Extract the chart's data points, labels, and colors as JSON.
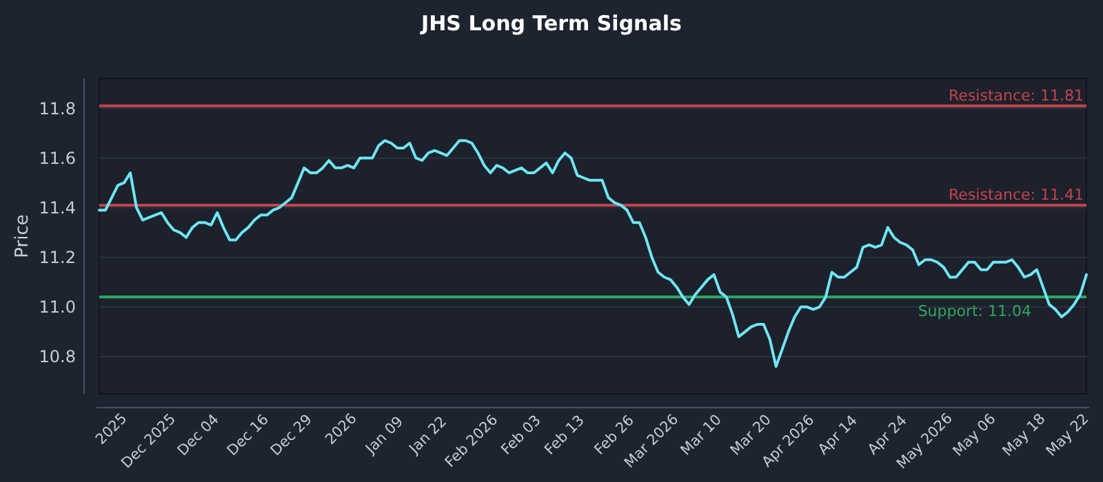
{
  "chart_data": {
    "type": "line",
    "title": "JHS Long Term Signals",
    "ylabel": "Price",
    "categories": [
      null,
      null,
      "2025",
      null,
      null,
      null,
      null,
      null,
      "Dec 2025",
      null,
      null,
      null,
      null,
      null,
      null,
      null,
      "Dec 04",
      null,
      null,
      null,
      null,
      null,
      null,
      null,
      "Dec 16",
      null,
      null,
      null,
      null,
      null,
      null,
      "Dec 29",
      null,
      null,
      null,
      null,
      null,
      null,
      null,
      "2026",
      null,
      null,
      null,
      null,
      null,
      null,
      "Jan 09",
      null,
      null,
      null,
      null,
      null,
      null,
      "Jan 22",
      null,
      null,
      null,
      null,
      null,
      null,
      "Feb 2026",
      null,
      null,
      null,
      null,
      null,
      null,
      null,
      "Feb 03",
      null,
      null,
      null,
      null,
      null,
      null,
      "Feb 13",
      null,
      null,
      null,
      null,
      null,
      null,
      null,
      "Feb 26",
      null,
      null,
      null,
      null,
      null,
      "Mar 2026",
      null,
      null,
      null,
      null,
      null,
      null,
      null,
      "Mar 10",
      null,
      null,
      null,
      null,
      null,
      null,
      null,
      "Mar 20",
      null,
      null,
      null,
      null,
      null,
      "Apr 2026",
      null,
      null,
      null,
      null,
      null,
      null,
      null,
      "Apr 14",
      null,
      null,
      null,
      null,
      null,
      null,
      null,
      "Apr 24",
      null,
      null,
      null,
      null,
      null,
      "May 2026",
      null,
      null,
      null,
      null,
      null,
      null,
      null,
      "May 06",
      null,
      null,
      null,
      null,
      null,
      null,
      null,
      "May 18",
      null,
      null,
      null,
      null,
      null,
      null,
      "May 22",
      null,
      null,
      null
    ],
    "series": [
      {
        "color": "#6ee6f2",
        "values": [
          11.39,
          11.39,
          11.44,
          11.49,
          11.5,
          11.54,
          11.4,
          11.35,
          11.36,
          11.37,
          11.38,
          11.34,
          11.31,
          11.3,
          11.28,
          11.32,
          11.34,
          11.34,
          11.33,
          11.38,
          11.32,
          11.27,
          11.27,
          11.3,
          11.32,
          11.35,
          11.37,
          11.37,
          11.39,
          11.4,
          11.42,
          11.44,
          11.5,
          11.56,
          11.54,
          11.54,
          11.56,
          11.59,
          11.56,
          11.56,
          11.57,
          11.56,
          11.6,
          11.6,
          11.6,
          11.65,
          11.67,
          11.66,
          11.64,
          11.64,
          11.66,
          11.6,
          11.59,
          11.62,
          11.63,
          11.62,
          11.61,
          11.64,
          11.67,
          11.67,
          11.66,
          11.62,
          11.57,
          11.54,
          11.57,
          11.56,
          11.54,
          11.55,
          11.56,
          11.54,
          11.54,
          11.56,
          11.58,
          11.54,
          11.59,
          11.62,
          11.6,
          11.53,
          11.52,
          11.51,
          11.51,
          11.51,
          11.44,
          11.42,
          11.41,
          11.39,
          11.34,
          11.34,
          11.28,
          11.2,
          11.14,
          11.12,
          11.11,
          11.08,
          11.04,
          11.01,
          11.05,
          11.08,
          11.11,
          11.13,
          11.06,
          11.04,
          10.97,
          10.88,
          10.9,
          10.92,
          10.93,
          10.93,
          10.87,
          10.76,
          10.83,
          10.9,
          10.96,
          11.0,
          11.0,
          10.99,
          11.0,
          11.04,
          11.14,
          11.12,
          11.12,
          11.14,
          11.16,
          11.24,
          11.25,
          11.24,
          11.25,
          11.32,
          11.28,
          11.26,
          11.25,
          11.23,
          11.17,
          11.19,
          11.19,
          11.18,
          11.16,
          11.12,
          11.12,
          11.15,
          11.18,
          11.18,
          11.15,
          11.15,
          11.18,
          11.18,
          11.18,
          11.19,
          11.16,
          11.12,
          11.13,
          11.15,
          11.08,
          11.01,
          10.99,
          10.96,
          10.98,
          11.01,
          11.05,
          11.13
        ]
      }
    ],
    "ylim": [
      10.65,
      11.92
    ],
    "yticks": [
      10.8,
      {
        "value": 11,
        "label": "11.0"
      },
      11.2,
      11.4,
      11.6,
      11.8
    ],
    "grid": "y",
    "marker": "none",
    "line_style": "solid",
    "ref_lines": [
      {
        "axis": "y",
        "value": 11.81,
        "label": "Resistance: 11.81",
        "color": "#c4434d"
      },
      {
        "axis": "y",
        "value": 11.41,
        "label": "Resistance: 11.41",
        "color": "#c4434d"
      },
      {
        "axis": "y",
        "value": 11.04,
        "label": "Support: 11.04",
        "color": "#2fa862"
      }
    ]
  }
}
